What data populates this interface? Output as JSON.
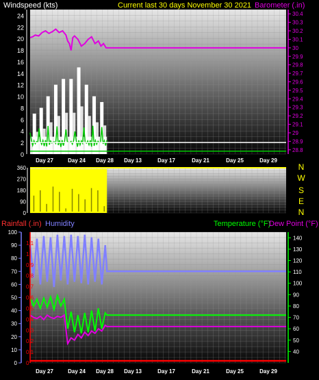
{
  "header": {
    "left_label": "Windspeed (kts)",
    "center_label": "Current last 30 days November 30 2021",
    "right_label": "Barometer (.in)"
  },
  "colors": {
    "background": "#000000",
    "wind": "#ffffff",
    "gust": "#00c800",
    "barometer": "#e000e0",
    "direction": "#ffff00",
    "humidity": "#8080ff",
    "rainfall": "#ff0000",
    "temperature": "#00ff00",
    "dewpoint": "#e000e0",
    "date_text": "#ffffff",
    "header_yellow": "#ffff00"
  },
  "x_axis": {
    "tick_labels": [
      "Day 27",
      "Day 24",
      "Day 28",
      "Day 13",
      "Day 17",
      "Day 21",
      "Day 25",
      "Day 29"
    ]
  },
  "chart_data": [
    {
      "type": "line",
      "panel": "wind_barometer",
      "y_left": {
        "label": "Windspeed (kts)",
        "ticks": [
          0,
          2,
          4,
          6,
          8,
          10,
          12,
          14,
          16,
          18,
          20,
          22,
          24
        ],
        "range": [
          0,
          25
        ]
      },
      "y_right": {
        "label": "Barometer (.in)",
        "ticks": [
          "28.8",
          "28.9",
          "29",
          "29.1",
          "29.2",
          "29.3",
          "29.4",
          "29.5",
          "29.6",
          "29.7",
          "29.8",
          "29.9",
          "30",
          "30.1",
          "30.2",
          "30.3",
          "30.4"
        ],
        "range": [
          28.75,
          30.45
        ]
      },
      "series": [
        {
          "name": "Barometer (.in)",
          "axis": "right",
          "x": [
            0,
            0.3,
            0.6,
            1.0,
            1.4,
            1.8,
            2.2,
            2.6,
            3.0,
            3.4,
            3.8,
            4.2,
            4.4,
            4.6,
            4.8,
            5.0,
            5.2,
            5.6,
            6.0,
            6.4,
            6.8,
            7.2,
            7.6,
            8.0,
            8.3,
            8.6,
            8.9,
            30
          ],
          "values": [
            30.12,
            30.13,
            30.15,
            30.14,
            30.18,
            30.2,
            30.17,
            30.19,
            30.22,
            30.18,
            30.2,
            30.15,
            30.08,
            30.05,
            29.97,
            30.12,
            30.14,
            30.1,
            30.02,
            30.05,
            30.1,
            30.13,
            30.05,
            30.08,
            30.02,
            30.05,
            30.0,
            30.0
          ]
        }
      ],
      "wind_max_x": [
        0.5,
        1.3,
        2.1,
        3.0,
        3.9,
        4.8,
        5.7,
        6.6,
        7.5,
        8.4
      ],
      "wind_max_values": [
        7,
        8,
        10,
        12,
        13,
        13,
        15,
        12,
        10,
        9
      ],
      "hlines": [
        {
          "value": 2,
          "color": "white"
        },
        {
          "value": 0.5,
          "color": "green"
        }
      ]
    },
    {
      "type": "area",
      "panel": "wind_direction",
      "y_left": {
        "ticks": [
          0,
          90,
          180,
          270,
          360
        ],
        "range": [
          0,
          360
        ]
      },
      "y_right": {
        "ticks": [
          "N",
          "W",
          "S",
          "E",
          "N"
        ]
      },
      "note_x_range": [
        0,
        9
      ],
      "series": [
        {
          "name": "direction",
          "values": [
            230,
            300,
            120,
            350,
            280,
            60,
            320,
            250,
            180,
            330,
            300,
            90,
            340,
            210,
            350,
            260,
            300,
            200,
            330,
            280
          ]
        }
      ]
    },
    {
      "type": "line",
      "panel": "rain_humidity_temperature",
      "y_left_rain": {
        "label": "Rainfall (.in)",
        "ticks": [
          "0",
          "0.1",
          "0.2",
          "0.3",
          "0.4",
          "0.5",
          "0.6",
          "0.7",
          "0.8",
          "0.9",
          "1",
          "1.1"
        ],
        "range": [
          0,
          1.2
        ]
      },
      "y_left_humidity": {
        "label": "Humidity",
        "ticks": [
          0,
          10,
          20,
          30,
          40,
          50,
          60,
          70,
          80,
          90,
          100
        ],
        "range": [
          0,
          100
        ]
      },
      "y_right": {
        "label_temp": "Temperature (°F)",
        "label_dew": "Dew Point (°F)",
        "ticks": [
          40,
          50,
          60,
          70,
          80,
          90,
          100,
          110,
          120,
          130,
          140
        ],
        "range": [
          30,
          145
        ]
      },
      "series": [
        {
          "name": "Humidity",
          "axis": "humidity",
          "x": [
            0,
            0.4,
            0.8,
            1.2,
            1.6,
            2.0,
            2.4,
            2.8,
            3.2,
            3.6,
            4.0,
            4.4,
            4.8,
            5.2,
            5.6,
            6.0,
            6.4,
            6.8,
            7.2,
            7.6,
            8.0,
            8.4,
            8.8,
            9.0,
            30
          ],
          "values": [
            90,
            65,
            95,
            60,
            97,
            62,
            96,
            58,
            98,
            63,
            97,
            60,
            98,
            62,
            97,
            61,
            98,
            60,
            96,
            62,
            95,
            60,
            90,
            70,
            70
          ]
        },
        {
          "name": "Temperature (°F)",
          "axis": "right",
          "x": [
            0,
            0.4,
            0.8,
            1.2,
            1.6,
            2.0,
            2.4,
            2.8,
            3.2,
            3.6,
            4.0,
            4.4,
            4.8,
            5.2,
            5.6,
            6.0,
            6.4,
            6.8,
            7.2,
            7.6,
            8.0,
            8.4,
            8.8,
            9.0,
            30
          ],
          "values": [
            88,
            80,
            86,
            78,
            87,
            79,
            88,
            77,
            89,
            80,
            86,
            60,
            75,
            57,
            72,
            56,
            74,
            57,
            76,
            58,
            78,
            60,
            74,
            72,
            72
          ]
        },
        {
          "name": "Dew Point (°F)",
          "axis": "right",
          "x": [
            0,
            0.4,
            0.8,
            1.2,
            1.6,
            2.0,
            2.4,
            2.8,
            3.2,
            3.6,
            4.0,
            4.4,
            4.8,
            5.2,
            5.6,
            6.0,
            6.4,
            6.8,
            7.2,
            7.6,
            8.0,
            8.4,
            8.8,
            9.0,
            30
          ],
          "values": [
            72,
            70,
            69,
            71,
            68,
            72,
            70,
            69,
            71,
            70,
            72,
            47,
            52,
            50,
            55,
            52,
            57,
            54,
            58,
            56,
            60,
            58,
            63,
            62,
            62
          ]
        },
        {
          "name": "Rainfall (.in)",
          "axis": "rain",
          "x": [
            0,
            30
          ],
          "values": [
            0,
            0
          ]
        }
      ]
    }
  ]
}
